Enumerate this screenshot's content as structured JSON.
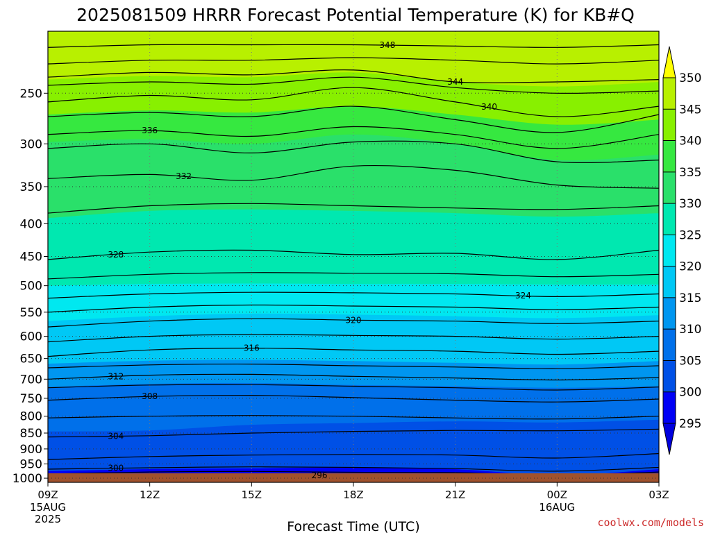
{
  "title": "2025081509 HRRR Forecast Potential Temperature (K) for KB#Q",
  "credit": "coolwx.com/models",
  "colors": {
    "credit": "#cc2a2a",
    "ground": "#a0522d",
    "contour": "#000000",
    "grid": "#777777"
  },
  "chart_data": {
    "type": "heatmap",
    "title": "2025081509 HRRR Forecast Potential Temperature (K) for KB#Q",
    "xlabel": "Forecast Time (UTC)",
    "ylabel": "",
    "x_ticks": [
      {
        "hour": 0,
        "label": "09Z",
        "sub": [
          "15AUG",
          "2025"
        ]
      },
      {
        "hour": 3,
        "label": "12Z",
        "sub": []
      },
      {
        "hour": 6,
        "label": "15Z",
        "sub": []
      },
      {
        "hour": 9,
        "label": "18Z",
        "sub": []
      },
      {
        "hour": 12,
        "label": "21Z",
        "sub": []
      },
      {
        "hour": 15,
        "label": "00Z",
        "sub": [
          "16AUG"
        ]
      },
      {
        "hour": 18,
        "label": "03Z",
        "sub": []
      }
    ],
    "y_ticks": [
      250,
      300,
      350,
      400,
      450,
      500,
      550,
      600,
      650,
      700,
      750,
      800,
      850,
      900,
      950,
      1000
    ],
    "y_axis_units": "hPa",
    "y_scale": "log-pressure",
    "ylim": [
      1015,
      200
    ],
    "xlim": [
      0,
      18
    ],
    "grid": true,
    "colorbar": {
      "ticks": [
        295,
        300,
        305,
        310,
        315,
        320,
        325,
        330,
        335,
        340,
        345,
        350
      ],
      "bands": [
        {
          "min": 290,
          "max": 295,
          "color": "#0000dd"
        },
        {
          "min": 295,
          "max": 300,
          "color": "#0000f5"
        },
        {
          "min": 300,
          "max": 305,
          "color": "#0050e6"
        },
        {
          "min": 305,
          "max": 310,
          "color": "#0070ea"
        },
        {
          "min": 310,
          "max": 315,
          "color": "#0096f0"
        },
        {
          "min": 315,
          "max": 320,
          "color": "#00c8f5"
        },
        {
          "min": 320,
          "max": 325,
          "color": "#00e8f0"
        },
        {
          "min": 325,
          "max": 330,
          "color": "#00e8b0"
        },
        {
          "min": 330,
          "max": 335,
          "color": "#2ae06a"
        },
        {
          "min": 335,
          "max": 340,
          "color": "#36e840"
        },
        {
          "min": 340,
          "max": 345,
          "color": "#88f000"
        },
        {
          "min": 345,
          "max": 350,
          "color": "#b8f000"
        },
        {
          "min": 350,
          "max": 360,
          "color": "#ffff00"
        }
      ],
      "extend": "both"
    },
    "contours": [
      {
        "level": 296,
        "hour": [
          0,
          3,
          6,
          9,
          12,
          15,
          18
        ],
        "p": [
          1008,
          1006,
          1005,
          1007,
          1006,
          1012,
          1008
        ]
      },
      {
        "level": 296,
        "hour": [
          0,
          3,
          6,
          9,
          12,
          15,
          18
        ],
        "p": [
          995,
          990,
          988,
          991,
          993,
          1003,
          993
        ],
        "label_at": 8
      },
      {
        "level": 298,
        "hour": [
          0,
          3,
          6,
          9,
          12,
          15,
          18
        ],
        "p": [
          985,
          978,
          976,
          979,
          980,
          990,
          978
        ]
      },
      {
        "level": 300,
        "hour": [
          0,
          3,
          6,
          9,
          12,
          15,
          18
        ],
        "p": [
          968,
          963,
          960,
          962,
          966,
          975,
          962
        ],
        "label_at": 2
      },
      {
        "level": 302,
        "hour": [
          0,
          3,
          6,
          9,
          12,
          15,
          18
        ],
        "p": [
          935,
          925,
          920,
          918,
          920,
          930,
          915
        ]
      },
      {
        "level": 304,
        "hour": [
          0,
          3,
          6,
          9,
          12,
          15,
          18
        ],
        "p": [
          862,
          858,
          850,
          845,
          842,
          843,
          838
        ],
        "label_at": 2
      },
      {
        "level": 306,
        "hour": [
          0,
          3,
          6,
          9,
          12,
          15,
          18
        ],
        "p": [
          805,
          800,
          798,
          800,
          805,
          808,
          800
        ]
      },
      {
        "level": 308,
        "hour": [
          0,
          3,
          6,
          9,
          12,
          15,
          18
        ],
        "p": [
          755,
          745,
          742,
          748,
          755,
          760,
          752
        ],
        "label_at": 3
      },
      {
        "level": 310,
        "hour": [
          0,
          3,
          6,
          9,
          12,
          15,
          18
        ],
        "p": [
          722,
          715,
          714,
          718,
          722,
          728,
          720
        ]
      },
      {
        "level": 312,
        "hour": [
          0,
          3,
          6,
          9,
          12,
          15,
          18
        ],
        "p": [
          700,
          690,
          688,
          693,
          697,
          702,
          696
        ],
        "label_at": 2
      },
      {
        "level": 314,
        "hour": [
          0,
          3,
          6,
          9,
          12,
          15,
          18
        ],
        "p": [
          672,
          665,
          663,
          667,
          670,
          674,
          667
        ]
      },
      {
        "level": 316,
        "hour": [
          0,
          3,
          6,
          9,
          12,
          15,
          18
        ],
        "p": [
          645,
          630,
          626,
          630,
          633,
          640,
          633
        ],
        "label_at": 6
      },
      {
        "level": 318,
        "hour": [
          0,
          3,
          6,
          9,
          12,
          15,
          18
        ],
        "p": [
          612,
          600,
          596,
          598,
          600,
          606,
          600
        ]
      },
      {
        "level": 320,
        "hour": [
          0,
          3,
          6,
          9,
          12,
          15,
          18
        ],
        "p": [
          580,
          568,
          563,
          566,
          568,
          573,
          568
        ],
        "label_at": 9
      },
      {
        "level": 322,
        "hour": [
          0,
          3,
          6,
          9,
          12,
          15,
          18
        ],
        "p": [
          550,
          540,
          536,
          538,
          540,
          545,
          540
        ]
      },
      {
        "level": 324,
        "hour": [
          0,
          3,
          6,
          9,
          12,
          15,
          18
        ],
        "p": [
          523,
          515,
          512,
          513,
          515,
          520,
          515
        ],
        "label_at": 14
      },
      {
        "level": 326,
        "hour": [
          0,
          3,
          6,
          9,
          12,
          15,
          18
        ],
        "p": [
          488,
          480,
          477,
          478,
          479,
          484,
          480
        ]
      },
      {
        "level": 328,
        "hour": [
          0,
          3,
          6,
          9,
          12,
          15,
          18
        ],
        "p": [
          455,
          443,
          440,
          447,
          445,
          455,
          440
        ],
        "label_at": 2
      },
      {
        "level": 330,
        "hour": [
          0,
          3,
          6,
          9,
          12,
          15,
          18
        ],
        "p": [
          385,
          375,
          372,
          375,
          378,
          380,
          375
        ]
      },
      {
        "level": 332,
        "hour": [
          0,
          3,
          6,
          9,
          12,
          15,
          18
        ],
        "p": [
          340,
          335,
          342,
          325,
          330,
          348,
          352
        ],
        "label_at": 4
      },
      {
        "level": 334,
        "hour": [
          0,
          3,
          6,
          9,
          12,
          15,
          18
        ],
        "p": [
          305,
          300,
          310,
          298,
          300,
          320,
          318
        ]
      },
      {
        "level": 336,
        "hour": [
          0,
          3,
          6,
          9,
          12,
          15,
          18
        ],
        "p": [
          290,
          286,
          292,
          282,
          290,
          305,
          290
        ],
        "label_at": 3
      },
      {
        "level": 338,
        "hour": [
          0,
          3,
          6,
          9,
          12,
          15,
          18
        ],
        "p": [
          272,
          268,
          272,
          262,
          275,
          288,
          270
        ]
      },
      {
        "level": 340,
        "hour": [
          0,
          3,
          6,
          9,
          12,
          15,
          18
        ],
        "p": [
          258,
          252,
          256,
          245,
          258,
          272,
          262
        ],
        "label_at": 13
      },
      {
        "level": 342,
        "hour": [
          0,
          3,
          6,
          9,
          12,
          15,
          18
        ],
        "p": [
          243,
          240,
          242,
          236,
          245,
          250,
          248
        ]
      },
      {
        "level": 344,
        "hour": [
          0,
          3,
          6,
          9,
          12,
          15,
          18
        ],
        "p": [
          236,
          232,
          234,
          230,
          240,
          240,
          238
        ],
        "label_at": 12
      },
      {
        "level": 346,
        "hour": [
          0,
          3,
          6,
          9,
          12,
          15,
          18
        ],
        "p": [
          225,
          222,
          222,
          220,
          222,
          225,
          222
        ]
      },
      {
        "level": 348,
        "hour": [
          0,
          3,
          6,
          9,
          12,
          15,
          18
        ],
        "p": [
          212,
          210,
          210,
          210,
          211,
          212,
          210
        ],
        "label_at": 10
      }
    ],
    "fill_boundaries": [
      {
        "upper": 295,
        "hour": [
          0,
          3,
          6,
          9,
          12,
          15,
          18
        ],
        "p": [
          1012,
          1010,
          1008,
          1010,
          1010,
          1014,
          1012
        ]
      },
      {
        "upper": 300,
        "hour": [
          0,
          3,
          6,
          9,
          12,
          15,
          18
        ],
        "p": [
          975,
          968,
          965,
          962,
          968,
          990,
          968
        ]
      },
      {
        "upper": 305,
        "hour": [
          0,
          3,
          6,
          9,
          12,
          15,
          18
        ],
        "p": [
          845,
          842,
          825,
          820,
          815,
          818,
          810
        ]
      },
      {
        "upper": 310,
        "hour": [
          0,
          3,
          6,
          9,
          12,
          15,
          18
        ],
        "p": [
          720,
          712,
          710,
          715,
          718,
          722,
          718
        ]
      },
      {
        "upper": 315,
        "hour": [
          0,
          3,
          6,
          9,
          12,
          15,
          18
        ],
        "p": [
          662,
          655,
          653,
          656,
          660,
          664,
          656
        ]
      },
      {
        "upper": 320,
        "hour": [
          0,
          3,
          6,
          9,
          12,
          15,
          18
        ],
        "p": [
          568,
          558,
          553,
          555,
          558,
          562,
          556
        ]
      },
      {
        "upper": 325,
        "hour": [
          0,
          3,
          6,
          9,
          12,
          15,
          18
        ],
        "p": [
          500,
          497,
          496,
          497,
          497,
          498,
          498
        ]
      },
      {
        "upper": 330,
        "hour": [
          0,
          3,
          6,
          9,
          12,
          15,
          18
        ],
        "p": [
          392,
          382,
          380,
          382,
          385,
          390,
          385
        ]
      },
      {
        "upper": 335,
        "hour": [
          0,
          3,
          6,
          9,
          12,
          15,
          18
        ],
        "p": [
          298,
          295,
          300,
          290,
          300,
          318,
          312
        ]
      },
      {
        "upper": 340,
        "hour": [
          0,
          3,
          6,
          9,
          12,
          15,
          18
        ],
        "p": [
          270,
          266,
          268,
          262,
          270,
          280,
          275
        ]
      },
      {
        "upper": 345,
        "hour": [
          0,
          3,
          6,
          9,
          12,
          15,
          18
        ],
        "p": [
          238,
          235,
          236,
          232,
          240,
          244,
          240
        ]
      },
      {
        "upper": 350,
        "hour": [
          0,
          3,
          6,
          9,
          12,
          15,
          18
        ],
        "p": [
          200,
          200,
          200,
          200,
          200,
          200,
          200
        ]
      }
    ]
  }
}
